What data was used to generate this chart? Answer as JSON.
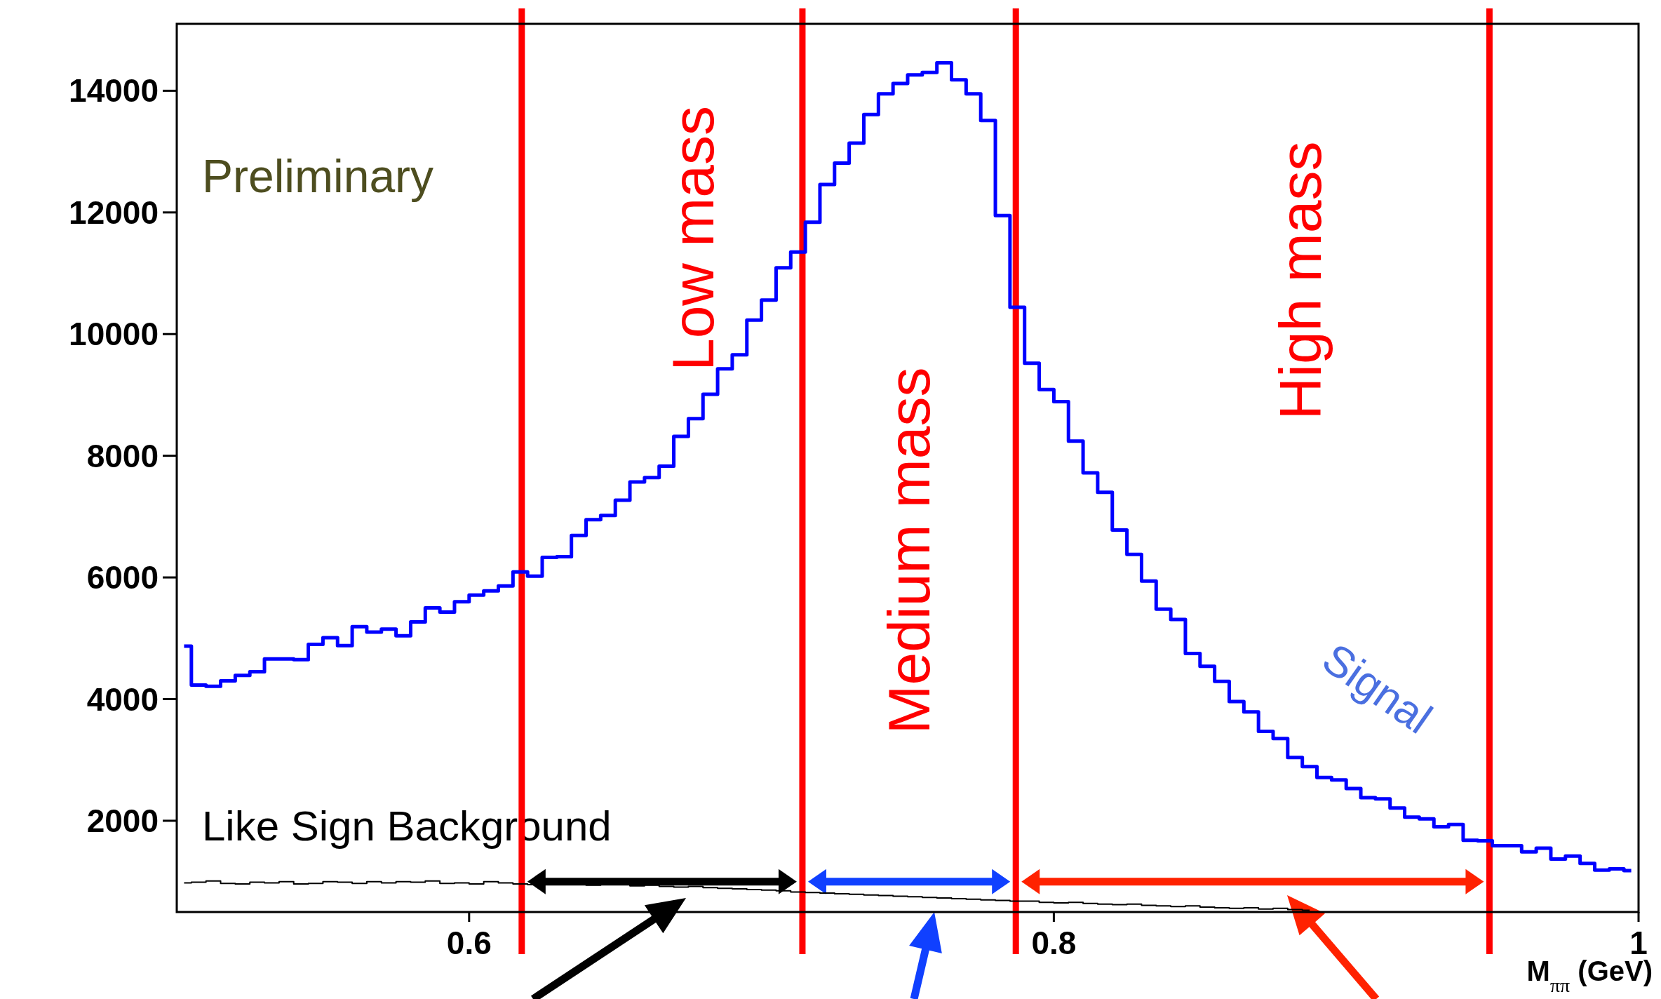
{
  "chart_data": {
    "type": "step",
    "xlabel": "M$_{ππ}$ (GeV)",
    "x": [
      0.5025,
      0.5075,
      0.5125,
      0.5175,
      0.5225,
      0.5275,
      0.5325,
      0.5375,
      0.5425,
      0.5475,
      0.5525,
      0.5575,
      0.5625,
      0.5675,
      0.5725,
      0.5775,
      0.5825,
      0.5875,
      0.5925,
      0.5975,
      0.6025,
      0.6075,
      0.6125,
      0.6175,
      0.6225,
      0.6275,
      0.6325,
      0.6375,
      0.6425,
      0.6475,
      0.6525,
      0.6575,
      0.6625,
      0.6675,
      0.6725,
      0.6775,
      0.6825,
      0.6875,
      0.6925,
      0.6975,
      0.7025,
      0.7075,
      0.7125,
      0.7175,
      0.7225,
      0.7275,
      0.7325,
      0.7375,
      0.7425,
      0.7475,
      0.7525,
      0.7575,
      0.7625,
      0.7675,
      0.7725,
      0.7775,
      0.7825,
      0.7875,
      0.7925,
      0.7975,
      0.8025,
      0.8075,
      0.8125,
      0.8175,
      0.8225,
      0.8275,
      0.8325,
      0.8375,
      0.8425,
      0.8475,
      0.8525,
      0.8575,
      0.8625,
      0.8675,
      0.8725,
      0.8775,
      0.8825,
      0.8875,
      0.8925,
      0.8975,
      0.9025,
      0.9075,
      0.9125,
      0.9175,
      0.9225,
      0.9275,
      0.9325,
      0.9375,
      0.9425,
      0.9475,
      0.9525,
      0.9575,
      0.9625,
      0.9675,
      0.9725,
      0.9775,
      0.9825,
      0.9875,
      0.9925,
      0.9975
    ],
    "series": [
      {
        "name": "Signal",
        "color": "#0000ff",
        "values": [
          4870,
          4230,
          4210,
          4300,
          4390,
          4450,
          4660,
          4660,
          4650,
          4900,
          5010,
          4880,
          5190,
          5100,
          5150,
          5040,
          5270,
          5500,
          5430,
          5600,
          5710,
          5780,
          5860,
          6090,
          6020,
          6330,
          6340,
          6690,
          6950,
          7020,
          7270,
          7570,
          7640,
          7830,
          8320,
          8610,
          9010,
          9430,
          9660,
          10230,
          10560,
          11090,
          11350,
          11840,
          12460,
          12810,
          13140,
          13610,
          13950,
          14120,
          14260,
          14300,
          14460,
          14180,
          13950,
          13510,
          11950,
          10440,
          9520,
          9090,
          8890,
          8240,
          7720,
          7400,
          6780,
          6380,
          5940,
          5480,
          5310,
          4750,
          4540,
          4290,
          3960,
          3790,
          3470,
          3350,
          3040,
          2890,
          2710,
          2670,
          2530,
          2380,
          2360,
          2210,
          2060,
          2030,
          1900,
          1940,
          1680,
          1670,
          1590,
          1590,
          1490,
          1550,
          1370,
          1420,
          1300,
          1190,
          1210,
          1180
        ]
      },
      {
        "name": "Like Sign Background",
        "color": "#000000",
        "values": [
          980,
          990,
          1010,
          970,
          960,
          990,
          980,
          1000,
          960,
          970,
          1000,
          990,
          970,
          1000,
          980,
          1000,
          990,
          1010,
          970,
          980,
          960,
          1000,
          980,
          960,
          950,
          980,
          960,
          970,
          940,
          950,
          960,
          930,
          940,
          920,
          910,
          920,
          900,
          890,
          880,
          870,
          860,
          850,
          830,
          820,
          810,
          800,
          790,
          780,
          770,
          760,
          750,
          740,
          730,
          720,
          710,
          700,
          690,
          680,
          680,
          660,
          650,
          660,
          640,
          630,
          620,
          630,
          610,
          600,
          590,
          600,
          580,
          570,
          560,
          570,
          550,
          560,
          540,
          530,
          null,
          null,
          null,
          null,
          null,
          null,
          null,
          null,
          null,
          null,
          null,
          null,
          null,
          null,
          null,
          null,
          null,
          null,
          null,
          null,
          null,
          null
        ]
      }
    ],
    "xlim": [
      0.5,
      1.0
    ],
    "xticks": [
      0.6,
      0.8,
      1
    ],
    "ylim": [
      500,
      15100
    ],
    "yticks": [
      2000,
      4000,
      6000,
      8000,
      10000,
      12000,
      14000
    ],
    "ref_lines": [
      {
        "axis": "x",
        "value": 0.618,
        "color": "#ff0000"
      },
      {
        "axis": "x",
        "value": 0.714,
        "color": "#ff0000"
      },
      {
        "axis": "x",
        "value": 0.787,
        "color": "#ff0000"
      },
      {
        "axis": "x",
        "value": 0.949,
        "color": "#ff0000"
      }
    ],
    "annotations": [
      "Preliminary",
      "Low mass",
      "Medium mass",
      "High mass"
    ],
    "grid": false,
    "legend": "bottom left"
  }
}
